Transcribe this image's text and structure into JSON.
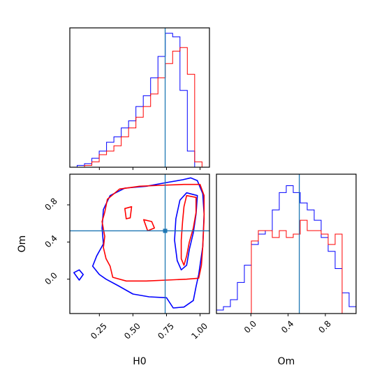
{
  "chart_data": {
    "type": "corner",
    "parameters": [
      "H0",
      "Om"
    ],
    "xlabels": {
      "H0": "H0",
      "Om": "Om"
    },
    "ylabel": "Om",
    "colors": {
      "blue": "#0000ff",
      "red": "#ff0000",
      "truth": "#1f77b4"
    },
    "truths": {
      "H0": 0.74,
      "Om": 0.52
    },
    "ranges": {
      "H0": [
        0.03,
        1.07
      ],
      "Om": [
        -0.37,
        1.13
      ]
    },
    "ticks": {
      "H0": [
        {
          "v": 0.25,
          "label": "0.25"
        },
        {
          "v": 0.5,
          "label": "0.50"
        },
        {
          "v": 0.75,
          "label": "0.75"
        },
        {
          "v": 1.0,
          "label": "1.00"
        }
      ],
      "Om": [
        {
          "v": 0.0,
          "label": "0.0"
        },
        {
          "v": 0.4,
          "label": "0.4"
        },
        {
          "v": 0.8,
          "label": "0.8"
        }
      ]
    },
    "hist_H0": {
      "bin_edges": [
        0.03,
        0.0847,
        0.1394,
        0.1941,
        0.2488,
        0.3035,
        0.3582,
        0.4129,
        0.4676,
        0.5223,
        0.577,
        0.6317,
        0.6864,
        0.7411,
        0.7958,
        0.8505,
        0.9052,
        0.9599,
        1.0146,
        1.07
      ],
      "series": [
        {
          "color": "blue",
          "counts": [
            0,
            1,
            2,
            5,
            9,
            14,
            17,
            22,
            26,
            34,
            40,
            50,
            62,
            75,
            73,
            43,
            9,
            0,
            0
          ]
        },
        {
          "color": "red",
          "counts": [
            0,
            0,
            1,
            3,
            7,
            9,
            12,
            17,
            22,
            28,
            34,
            41,
            50,
            58,
            65,
            67,
            52,
            3,
            0
          ]
        }
      ]
    },
    "hist_Om": {
      "bin_edges": [
        -0.37,
        -0.295,
        -0.22,
        -0.145,
        -0.07,
        0.005,
        0.08,
        0.155,
        0.23,
        0.305,
        0.38,
        0.455,
        0.53,
        0.605,
        0.68,
        0.755,
        0.83,
        0.905,
        0.98,
        1.055,
        1.13
      ],
      "series": [
        {
          "color": "blue",
          "counts": [
            1,
            2,
            4,
            9,
            14,
            20,
            23,
            24,
            30,
            35,
            37,
            35,
            32,
            30,
            27,
            22,
            18,
            13,
            6,
            2
          ]
        },
        {
          "color": "red",
          "counts": [
            0,
            0,
            0,
            0,
            0,
            21,
            24,
            24,
            22,
            24,
            22,
            23,
            27,
            24,
            24,
            23,
            20,
            23,
            0,
            0
          ]
        }
      ]
    },
    "contours": [
      {
        "color": "blue",
        "points": [
          [
            0.44,
            0.98
          ],
          [
            0.6,
            1.0
          ],
          [
            0.75,
            1.04
          ],
          [
            0.87,
            1.07
          ],
          [
            0.93,
            1.09
          ],
          [
            0.98,
            1.06
          ],
          [
            1.02,
            0.92
          ],
          [
            1.03,
            0.7
          ],
          [
            1.02,
            0.35
          ],
          [
            0.99,
            0.05
          ],
          [
            0.97,
            -0.08
          ],
          [
            0.95,
            -0.23
          ],
          [
            0.88,
            -0.3
          ],
          [
            0.8,
            -0.31
          ],
          [
            0.75,
            -0.2
          ],
          [
            0.62,
            -0.19
          ],
          [
            0.5,
            -0.16
          ],
          [
            0.39,
            -0.07
          ],
          [
            0.3,
            0.0
          ],
          [
            0.25,
            0.05
          ],
          [
            0.2,
            0.14
          ],
          [
            0.23,
            0.25
          ],
          [
            0.28,
            0.38
          ],
          [
            0.27,
            0.55
          ],
          [
            0.28,
            0.75
          ],
          [
            0.33,
            0.9
          ],
          [
            0.44,
            0.98
          ]
        ]
      },
      {
        "color": "blue",
        "points": [
          [
            0.9,
            0.93
          ],
          [
            0.98,
            0.9
          ],
          [
            0.97,
            0.7
          ],
          [
            0.95,
            0.5
          ],
          [
            0.92,
            0.32
          ],
          [
            0.9,
            0.15
          ],
          [
            0.86,
            0.1
          ],
          [
            0.83,
            0.2
          ],
          [
            0.81,
            0.42
          ],
          [
            0.82,
            0.65
          ],
          [
            0.85,
            0.85
          ],
          [
            0.9,
            0.93
          ]
        ]
      },
      {
        "color": "blue",
        "points": [
          [
            0.06,
            0.07
          ],
          [
            0.1,
            0.1
          ],
          [
            0.13,
            0.05
          ],
          [
            0.1,
            -0.01
          ],
          [
            0.06,
            0.07
          ]
        ]
      },
      {
        "color": "red",
        "points": [
          [
            0.4,
            0.97
          ],
          [
            0.55,
            1.0
          ],
          [
            0.7,
            1.01
          ],
          [
            0.88,
            1.02
          ],
          [
            1.0,
            1.02
          ],
          [
            1.03,
            0.9
          ],
          [
            1.03,
            0.65
          ],
          [
            1.02,
            0.35
          ],
          [
            1.01,
            0.15
          ],
          [
            0.99,
            0.01
          ],
          [
            0.9,
            0.0
          ],
          [
            0.75,
            -0.01
          ],
          [
            0.6,
            -0.02
          ],
          [
            0.45,
            -0.02
          ],
          [
            0.35,
            0.02
          ],
          [
            0.33,
            0.14
          ],
          [
            0.3,
            0.22
          ],
          [
            0.28,
            0.34
          ],
          [
            0.29,
            0.46
          ],
          [
            0.27,
            0.62
          ],
          [
            0.29,
            0.72
          ],
          [
            0.31,
            0.86
          ],
          [
            0.4,
            0.97
          ]
        ]
      },
      {
        "color": "red",
        "points": [
          [
            0.9,
            0.9
          ],
          [
            0.97,
            0.88
          ],
          [
            0.97,
            0.72
          ],
          [
            0.95,
            0.55
          ],
          [
            0.92,
            0.4
          ],
          [
            0.9,
            0.25
          ],
          [
            0.88,
            0.15
          ],
          [
            0.86,
            0.22
          ],
          [
            0.86,
            0.42
          ],
          [
            0.87,
            0.62
          ],
          [
            0.88,
            0.78
          ],
          [
            0.9,
            0.9
          ]
        ]
      },
      {
        "color": "red",
        "points": [
          [
            0.44,
            0.76
          ],
          [
            0.49,
            0.78
          ],
          [
            0.48,
            0.66
          ],
          [
            0.45,
            0.65
          ],
          [
            0.44,
            0.76
          ]
        ]
      },
      {
        "color": "red",
        "points": [
          [
            0.58,
            0.64
          ],
          [
            0.64,
            0.62
          ],
          [
            0.66,
            0.55
          ],
          [
            0.61,
            0.52
          ],
          [
            0.58,
            0.64
          ]
        ]
      }
    ]
  }
}
